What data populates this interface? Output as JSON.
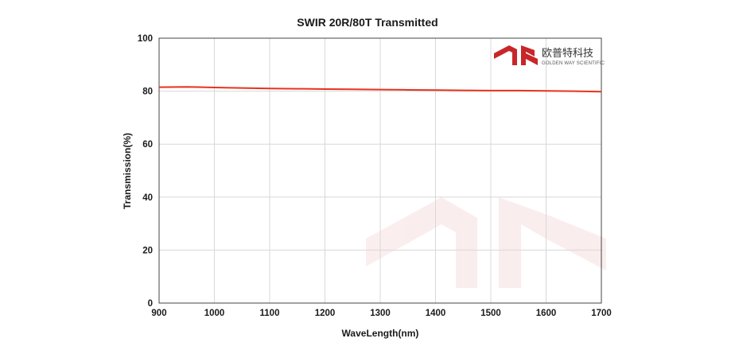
{
  "chart_data": {
    "type": "line",
    "title": "SWIR 20R/80T Transmitted",
    "xlabel": "WaveLength(nm)",
    "ylabel": "Transmission(%)",
    "xlim": [
      900,
      1700
    ],
    "ylim": [
      0,
      100
    ],
    "x_ticks": [
      900,
      1000,
      1100,
      1200,
      1300,
      1400,
      1500,
      1600,
      1700
    ],
    "y_ticks": [
      0,
      20,
      40,
      60,
      80,
      100
    ],
    "grid": true,
    "series": [
      {
        "color": "#e8321e",
        "x": [
          900,
          950,
          1000,
          1050,
          1100,
          1150,
          1200,
          1250,
          1300,
          1350,
          1400,
          1450,
          1500,
          1550,
          1600,
          1650,
          1700
        ],
        "y": [
          81.5,
          81.6,
          81.4,
          81.2,
          81.0,
          80.9,
          80.8,
          80.7,
          80.6,
          80.5,
          80.4,
          80.3,
          80.2,
          80.2,
          80.1,
          80.0,
          79.8
        ]
      }
    ]
  },
  "logo": {
    "name_cn": "欧普特科技",
    "name_en": "GOLDEN WAY SCIENTIFIC",
    "color": "#c8262a"
  }
}
